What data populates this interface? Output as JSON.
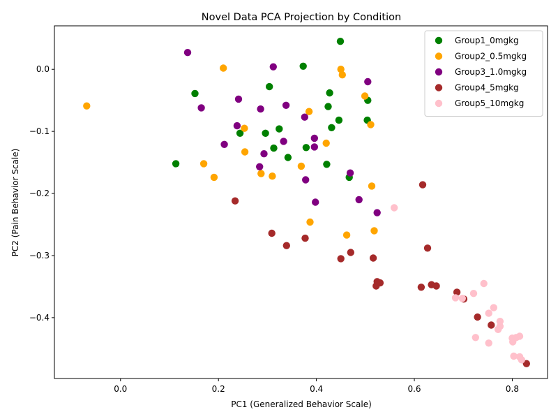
{
  "chart_data": {
    "type": "scatter",
    "title": "Novel Data PCA Projection by Condition",
    "xlabel": "PC1 (Generalized Behavior Scale)",
    "ylabel": "PC2 (Pain Behavior Scale)",
    "xlim": [
      -0.135,
      0.872
    ],
    "ylim": [
      -0.498,
      0.07
    ],
    "xticks": [
      0.0,
      0.2,
      0.4,
      0.6,
      0.8
    ],
    "xtick_labels": [
      "0.0",
      "0.2",
      "0.4",
      "0.6",
      "0.8"
    ],
    "yticks": [
      0.0,
      -0.1,
      -0.2,
      -0.3,
      -0.4
    ],
    "ytick_labels": [
      "0.0",
      "−0.1",
      "−0.2",
      "−0.3",
      "−0.4"
    ],
    "grid": false,
    "legend_position": "top-right",
    "series": [
      {
        "name": "Group1_0mgkg",
        "color": "#008000",
        "points": [
          [
            0.449,
            0.045
          ],
          [
            0.373,
            0.005
          ],
          [
            0.304,
            -0.028
          ],
          [
            0.152,
            -0.039
          ],
          [
            0.427,
            -0.038
          ],
          [
            0.424,
            -0.06
          ],
          [
            0.505,
            -0.05
          ],
          [
            0.446,
            -0.082
          ],
          [
            0.504,
            -0.082
          ],
          [
            0.431,
            -0.094
          ],
          [
            0.324,
            -0.096
          ],
          [
            0.296,
            -0.103
          ],
          [
            0.244,
            -0.103
          ],
          [
            0.313,
            -0.127
          ],
          [
            0.379,
            -0.126
          ],
          [
            0.342,
            -0.142
          ],
          [
            0.113,
            -0.152
          ],
          [
            0.421,
            -0.153
          ],
          [
            0.467,
            -0.174
          ]
        ]
      },
      {
        "name": "Group2_0.5mgkg",
        "color": "#ffa500",
        "points": [
          [
            0.21,
            0.002
          ],
          [
            0.45,
            0.0
          ],
          [
            0.453,
            -0.009
          ],
          [
            -0.069,
            -0.059
          ],
          [
            0.499,
            -0.043
          ],
          [
            0.385,
            -0.068
          ],
          [
            0.511,
            -0.089
          ],
          [
            0.253,
            -0.095
          ],
          [
            0.42,
            -0.119
          ],
          [
            0.254,
            -0.133
          ],
          [
            0.17,
            -0.152
          ],
          [
            0.369,
            -0.156
          ],
          [
            0.287,
            -0.168
          ],
          [
            0.31,
            -0.172
          ],
          [
            0.191,
            -0.174
          ],
          [
            0.513,
            -0.188
          ],
          [
            0.387,
            -0.246
          ],
          [
            0.518,
            -0.26
          ],
          [
            0.462,
            -0.267
          ]
        ]
      },
      {
        "name": "Group3_1.0mgkg",
        "color": "#800080",
        "points": [
          [
            0.137,
            0.027
          ],
          [
            0.312,
            0.004
          ],
          [
            0.505,
            -0.02
          ],
          [
            0.241,
            -0.048
          ],
          [
            0.338,
            -0.058
          ],
          [
            0.165,
            -0.062
          ],
          [
            0.286,
            -0.064
          ],
          [
            0.376,
            -0.077
          ],
          [
            0.238,
            -0.091
          ],
          [
            0.396,
            -0.111
          ],
          [
            0.333,
            -0.116
          ],
          [
            0.212,
            -0.121
          ],
          [
            0.396,
            -0.125
          ],
          [
            0.293,
            -0.136
          ],
          [
            0.284,
            -0.157
          ],
          [
            0.469,
            -0.167
          ],
          [
            0.378,
            -0.178
          ],
          [
            0.487,
            -0.21
          ],
          [
            0.398,
            -0.214
          ],
          [
            0.524,
            -0.231
          ]
        ]
      },
      {
        "name": "Group4_5mgkg",
        "color": "#a52a2a",
        "points": [
          [
            0.617,
            -0.186
          ],
          [
            0.234,
            -0.212
          ],
          [
            0.309,
            -0.264
          ],
          [
            0.377,
            -0.272
          ],
          [
            0.339,
            -0.284
          ],
          [
            0.627,
            -0.288
          ],
          [
            0.47,
            -0.295
          ],
          [
            0.45,
            -0.305
          ],
          [
            0.516,
            -0.304
          ],
          [
            0.524,
            -0.342
          ],
          [
            0.53,
            -0.344
          ],
          [
            0.635,
            -0.347
          ],
          [
            0.645,
            -0.349
          ],
          [
            0.522,
            -0.349
          ],
          [
            0.614,
            -0.351
          ],
          [
            0.687,
            -0.359
          ],
          [
            0.701,
            -0.37
          ],
          [
            0.729,
            -0.399
          ],
          [
            0.757,
            -0.412
          ],
          [
            0.829,
            -0.474
          ]
        ]
      },
      {
        "name": "Group5_10mgkg",
        "color": "#ffc0cb",
        "points": [
          [
            0.559,
            -0.223
          ],
          [
            0.742,
            -0.345
          ],
          [
            0.721,
            -0.361
          ],
          [
            0.684,
            -0.368
          ],
          [
            0.698,
            -0.369
          ],
          [
            0.762,
            -0.384
          ],
          [
            0.752,
            -0.393
          ],
          [
            0.775,
            -0.406
          ],
          [
            0.775,
            -0.414
          ],
          [
            0.771,
            -0.419
          ],
          [
            0.8,
            -0.433
          ],
          [
            0.815,
            -0.43
          ],
          [
            0.808,
            -0.432
          ],
          [
            0.725,
            -0.432
          ],
          [
            0.801,
            -0.439
          ],
          [
            0.752,
            -0.441
          ],
          [
            0.803,
            -0.462
          ],
          [
            0.815,
            -0.463
          ],
          [
            0.819,
            -0.468
          ]
        ]
      }
    ]
  }
}
